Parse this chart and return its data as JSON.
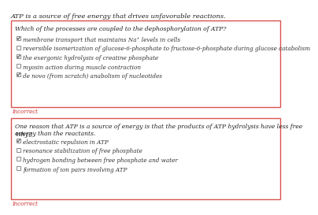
{
  "title": "ATP is a source of free energy that drives unfavorable reactions.",
  "bg_color": "#ffffff",
  "box_border_color": "#d9534f",
  "incorrect_color": "#cc3333",
  "incorrect_text": "Incorrect",
  "title_fontsize": 6.0,
  "q_fontsize": 5.5,
  "opt_fontsize": 5.2,
  "q1": {
    "question": "Which of the processes are coupled to the dephosphorylation of ATP?",
    "options": [
      {
        "text": "membrane transport that maintains Na⁺ levels in cells",
        "checked": true
      },
      {
        "text": "reversible isomerization of glucose-6-phosphate to fructose-6-phosphate during glucose catabolism",
        "checked": false
      },
      {
        "text": "the exergonic hydrolysis of creatine phosphate",
        "checked": true
      },
      {
        "text": "myosin action during muscle contraction",
        "checked": false
      },
      {
        "text": "de novo (from scratch) anabolism of nucleotides",
        "checked": true
      }
    ]
  },
  "q2_preamble": "One reason that ATP is a source of energy is that the products of ATP hydrolysis have less free energy than the reactants.",
  "q2_sub": "Why?",
  "q2": {
    "options": [
      {
        "text": "electrostatic repulsion in ATP",
        "checked": true
      },
      {
        "text": "resonance stabilization of free phosphate",
        "checked": false
      },
      {
        "text": "hydrogen bonding between free phosphate and water",
        "checked": false
      },
      {
        "text": "formation of ion pairs involving ATP",
        "checked": false
      }
    ]
  }
}
